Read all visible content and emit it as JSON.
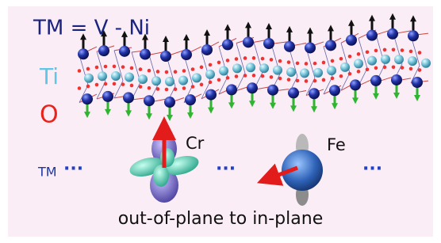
{
  "labels": {
    "formula": "TM = V - Ni",
    "ti": "Ti",
    "o": "O",
    "cr": "Cr",
    "fe": "Fe",
    "tm": "TM",
    "dots": [
      "···",
      "···",
      "···"
    ]
  },
  "caption": "out-of-plane to in-plane"
}
